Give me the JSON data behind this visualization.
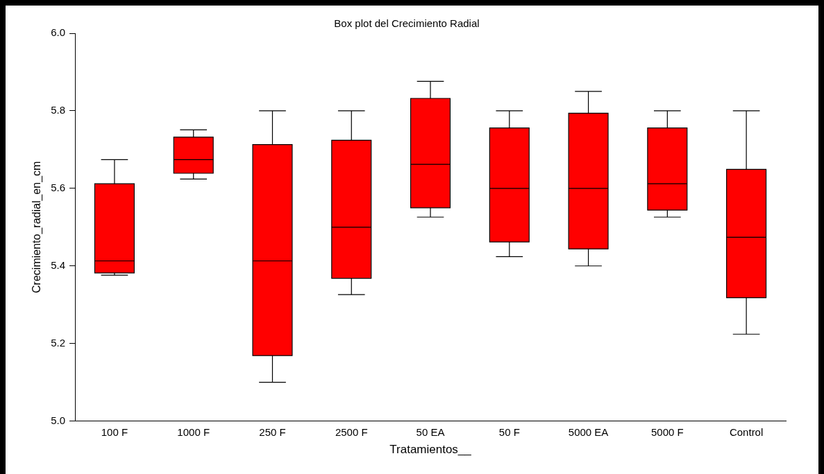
{
  "chart_data": {
    "type": "box",
    "title": "Box plot del Crecimiento Radial",
    "xlabel": "Tratamientos__",
    "ylabel": "Crecimiento_radial_en_cm",
    "categories": [
      "100 F",
      "1000 F",
      "250 F",
      "2500 F",
      "50 EA",
      "50 F",
      "5000 EA",
      "5000 F",
      "Control"
    ],
    "color": "#ff0000",
    "boxes": [
      {
        "low": 5.376,
        "q1": 5.382,
        "median": 5.413,
        "q3": 5.612,
        "high": 5.674
      },
      {
        "low": 5.624,
        "q1": 5.639,
        "median": 5.674,
        "q3": 5.732,
        "high": 5.751
      },
      {
        "low": 5.1,
        "q1": 5.169,
        "median": 5.413,
        "q3": 5.713,
        "high": 5.8
      },
      {
        "low": 5.326,
        "q1": 5.368,
        "median": 5.5,
        "q3": 5.724,
        "high": 5.8
      },
      {
        "low": 5.526,
        "q1": 5.55,
        "median": 5.662,
        "q3": 5.832,
        "high": 5.876
      },
      {
        "low": 5.424,
        "q1": 5.462,
        "median": 5.6,
        "q3": 5.756,
        "high": 5.8
      },
      {
        "low": 5.4,
        "q1": 5.444,
        "median": 5.6,
        "q3": 5.794,
        "high": 5.85
      },
      {
        "low": 5.526,
        "q1": 5.544,
        "median": 5.612,
        "q3": 5.756,
        "high": 5.8
      },
      {
        "low": 5.224,
        "q1": 5.318,
        "median": 5.474,
        "q3": 5.649,
        "high": 5.8
      }
    ],
    "ylim": [
      5,
      6
    ],
    "yticks": [
      {
        "value": 5,
        "label": "5.0"
      },
      {
        "value": 5.2,
        "label": "5.2"
      },
      {
        "value": 5.4,
        "label": "5.4"
      },
      {
        "value": 5.6,
        "label": "5.6"
      },
      {
        "value": 5.8,
        "label": "5.8"
      },
      {
        "value": 6,
        "label": "6.0"
      }
    ],
    "grid": false,
    "legend": false
  }
}
